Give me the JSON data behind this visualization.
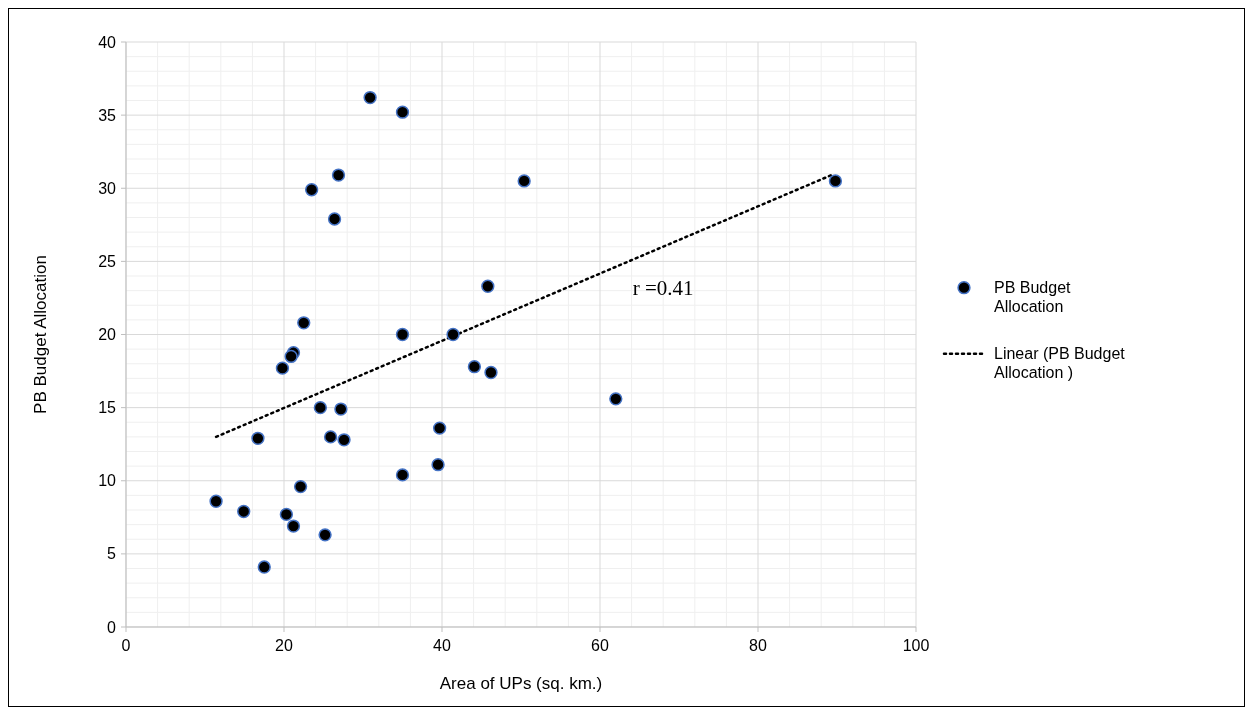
{
  "chart_data": {
    "type": "scatter",
    "xlabel": "Area of UPs (sq. km.)",
    "ylabel": "PB Budget Allocation",
    "xlim": [
      0,
      100
    ],
    "xticks": [
      0,
      20,
      40,
      60,
      80,
      100
    ],
    "ylim": [
      0,
      40
    ],
    "yticks": [
      0,
      5,
      10,
      15,
      20,
      25,
      30,
      35,
      40
    ],
    "grid": true,
    "legend": "right",
    "marker": "circle",
    "annotations": [
      "r =0.41"
    ],
    "series": [
      {
        "name": "PB Budget Allocation",
        "color": "#000000",
        "x": [
          30.9,
          35.0,
          26.9,
          23.5,
          26.4,
          50.4,
          45.8,
          22.5,
          35.0,
          41.4,
          21.2,
          20.9,
          19.8,
          44.1,
          46.2,
          16.7,
          24.6,
          27.2,
          25.9,
          27.6,
          39.7,
          39.5,
          35.0,
          22.1,
          11.4,
          14.9,
          20.3,
          21.2,
          25.2,
          17.5,
          89.8,
          62.0
        ],
        "values": [
          36.2,
          35.2,
          30.9,
          29.9,
          27.9,
          30.5,
          23.3,
          20.8,
          20.0,
          20.0,
          18.75,
          18.5,
          17.7,
          17.8,
          17.4,
          12.9,
          15.0,
          14.9,
          13.0,
          12.8,
          13.6,
          11.1,
          10.4,
          9.6,
          8.6,
          7.9,
          7.7,
          6.9,
          6.3,
          4.1,
          30.5,
          15.6
        ]
      },
      {
        "name": "Linear (PB Budget Allocation )",
        "type": "line",
        "line_style": "dotted",
        "marker": "none",
        "color": "#000000",
        "x": [
          11.4,
          89.3
        ],
        "values": [
          13.0,
          30.9
        ]
      }
    ]
  }
}
